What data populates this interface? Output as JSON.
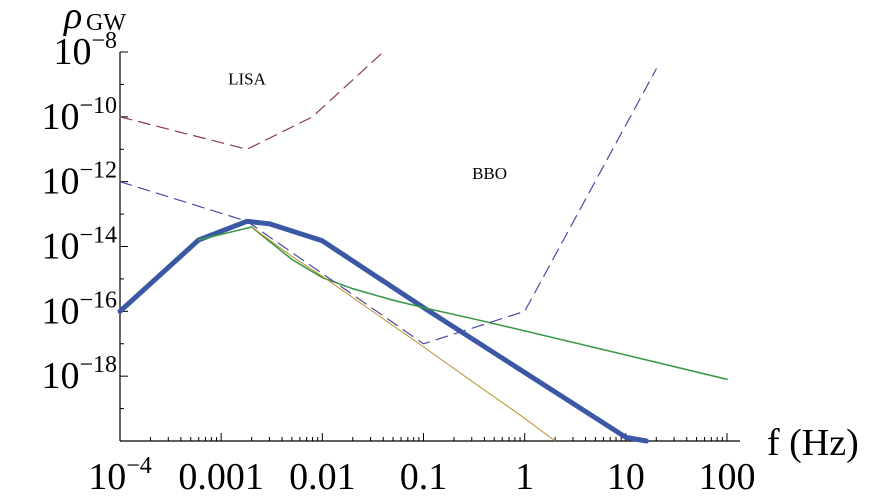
{
  "chart_data": {
    "type": "line",
    "title": "",
    "xscale": "log",
    "yscale": "log",
    "xlim": [
      0.0001,
      100
    ],
    "ylim": [
      1e-20,
      1e-08
    ],
    "grid": false,
    "legend": "none",
    "ylabel": {
      "base": "ρ",
      "sub": "GW"
    },
    "xlabel": "f (Hz)",
    "x_ticks": [
      {
        "value": 0.0001,
        "base": "10",
        "exp": "−4"
      },
      {
        "value": 0.001,
        "base": "0.001",
        "exp": ""
      },
      {
        "value": 0.01,
        "base": "0.01",
        "exp": ""
      },
      {
        "value": 0.1,
        "base": "0.1",
        "exp": ""
      },
      {
        "value": 1,
        "base": "1",
        "exp": ""
      },
      {
        "value": 10,
        "base": "10",
        "exp": ""
      },
      {
        "value": 100,
        "base": "100",
        "exp": ""
      }
    ],
    "y_ticks": [
      {
        "value": 1e-08,
        "base": "10",
        "exp": "−8"
      },
      {
        "value": 1e-10,
        "base": "10",
        "exp": "−10"
      },
      {
        "value": 1e-12,
        "base": "10",
        "exp": "−12"
      },
      {
        "value": 1e-14,
        "base": "10",
        "exp": "−14"
      },
      {
        "value": 1e-16,
        "base": "10",
        "exp": "−16"
      },
      {
        "value": 1e-18,
        "base": "10",
        "exp": "−18"
      }
    ],
    "annotations": [
      {
        "text": "LISA",
        "x": 0.0018,
        "y": 1e-09
      },
      {
        "text": "BBO",
        "x": 0.45,
        "y": 1.2e-12
      }
    ],
    "series": [
      {
        "color": "#3a58a3",
        "stroke": "thick",
        "dash": "solid",
        "points": [
          [
            0.0001,
            1e-16
          ],
          [
            0.0006,
            1.6e-14
          ],
          [
            0.0018,
            6e-14
          ],
          [
            0.003,
            5e-14
          ],
          [
            0.01,
            1.5e-14
          ],
          [
            0.1,
            1.3e-16
          ],
          [
            1,
            1.3e-18
          ],
          [
            10,
            1.3e-20
          ],
          [
            16,
            5e-21
          ]
        ]
      },
      {
        "color": "#3c9a4a",
        "stroke": "thin",
        "dash": "solid",
        "points": [
          [
            0.0006,
            1.6e-14
          ],
          [
            0.002,
            4e-14
          ],
          [
            0.005,
            4e-15
          ],
          [
            0.01,
            1.1e-15
          ],
          [
            0.02,
            5e-16
          ],
          [
            0.05,
            2.2e-16
          ],
          [
            0.1,
            1.3e-16
          ],
          [
            0.3,
            6e-17
          ],
          [
            1,
            2.5e-17
          ],
          [
            10,
            4.5e-18
          ],
          [
            100,
            8e-19
          ]
        ]
      },
      {
        "color": "#b8922a",
        "stroke": "thin",
        "dash": "solid",
        "points": [
          [
            0.002,
            4e-14
          ],
          [
            0.005,
            5e-15
          ],
          [
            0.01,
            1.2e-15
          ],
          [
            0.03,
            1.1e-16
          ],
          [
            0.1,
            8e-18
          ],
          [
            0.3,
            7e-19
          ],
          [
            1,
            5e-20
          ],
          [
            2,
            1e-20
          ]
        ]
      },
      {
        "color": "#8a3a5a",
        "stroke": "thin",
        "dash": "dashed",
        "points": [
          [
            0.0001,
            1e-10
          ],
          [
            0.0018,
            1e-11
          ],
          [
            0.008,
            1e-10
          ],
          [
            0.04,
            1e-08
          ]
        ]
      },
      {
        "color": "#4a4aa8",
        "stroke": "thin",
        "dash": "dashed",
        "points": [
          [
            0.0001,
            1e-12
          ],
          [
            0.0018,
            6e-14
          ],
          [
            0.1,
            1e-17
          ],
          [
            1,
            1e-16
          ],
          [
            20,
            3e-09
          ]
        ]
      }
    ]
  }
}
